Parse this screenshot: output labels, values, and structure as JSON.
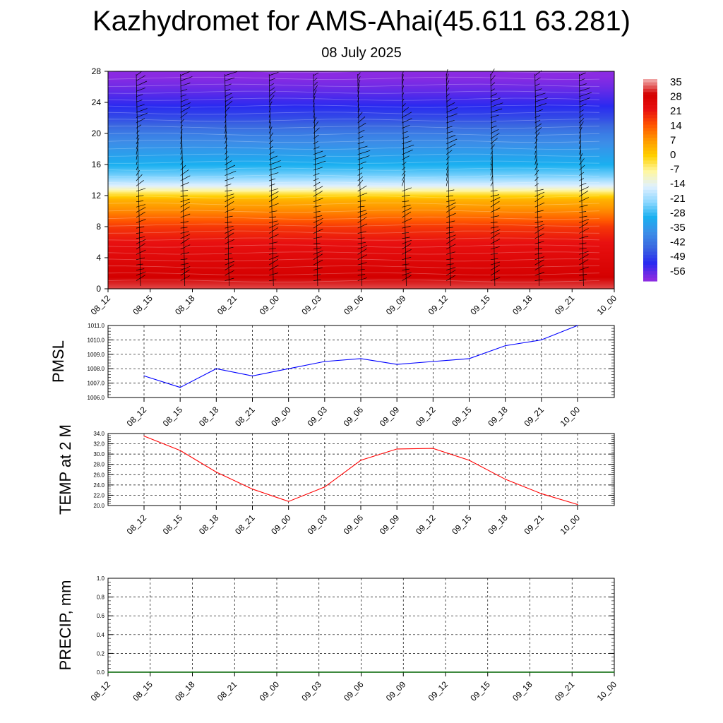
{
  "title": "Kazhydromet for AMS-Ahai(45.611 63.281)",
  "subtitle": "08 July 2025",
  "colors": {
    "pmsl_line": "#0000ff",
    "temp_line": "#ff0000",
    "precip_line": "#006400",
    "grid": "#000000"
  },
  "chart_data": [
    {
      "type": "heatmap",
      "name": "temperature-wind-profile",
      "x_ticks": [
        "08_12",
        "08_15",
        "08_18",
        "08_21",
        "09_00",
        "09_03",
        "09_06",
        "09_09",
        "09_12",
        "09_15",
        "09_18",
        "09_21",
        "10_00"
      ],
      "y_ticks": [
        "0",
        "4",
        "8",
        "12",
        "16",
        "20",
        "24",
        "28"
      ],
      "ylim": [
        0,
        28
      ],
      "colorbar_labels": [
        "35",
        "28",
        "21",
        "14",
        "7",
        "0",
        "-7",
        "-14",
        "-21",
        "-28",
        "-35",
        "-42",
        "-49",
        "-56"
      ],
      "color_stops": [
        {
          "value": 35,
          "color": "#f2b3b3"
        },
        {
          "value": 28,
          "color": "#d40000"
        },
        {
          "value": 21,
          "color": "#e81010"
        },
        {
          "value": 14,
          "color": "#ff5500"
        },
        {
          "value": 7,
          "color": "#ff9a00"
        },
        {
          "value": 0,
          "color": "#ffd000"
        },
        {
          "value": -7,
          "color": "#fff7a0"
        },
        {
          "value": -14,
          "color": "#e0f0ff"
        },
        {
          "value": -21,
          "color": "#8fd8ff"
        },
        {
          "value": -28,
          "color": "#1ab0f0"
        },
        {
          "value": -35,
          "color": "#3c8ee8"
        },
        {
          "value": -42,
          "color": "#3a66e0"
        },
        {
          "value": -49,
          "color": "#2a2af0"
        },
        {
          "value": -56,
          "color": "#8a2be2"
        }
      ],
      "profile": [
        {
          "y": 0,
          "t": 31
        },
        {
          "y": 2,
          "t": 27
        },
        {
          "y": 4,
          "t": 24
        },
        {
          "y": 6,
          "t": 21
        },
        {
          "y": 8,
          "t": 17
        },
        {
          "y": 10,
          "t": 9
        },
        {
          "y": 11.5,
          "t": 4
        },
        {
          "y": 12.5,
          "t": -5
        },
        {
          "y": 13.3,
          "t": -14
        },
        {
          "y": 14.5,
          "t": -22
        },
        {
          "y": 16,
          "t": -28
        },
        {
          "y": 18,
          "t": -33
        },
        {
          "y": 20,
          "t": -38
        },
        {
          "y": 22,
          "t": -45
        },
        {
          "y": 24,
          "t": -50
        },
        {
          "y": 26,
          "t": -54
        },
        {
          "y": 28,
          "t": -57
        }
      ]
    },
    {
      "type": "line",
      "name": "pmsl",
      "ylabel": "PMSL",
      "categories": [
        "08_12",
        "08_15",
        "08_18",
        "08_21",
        "09_00",
        "09_03",
        "09_06",
        "09_09",
        "09_12",
        "09_15",
        "09_18",
        "09_21",
        "10_00"
      ],
      "values": [
        1007.5,
        1006.7,
        1008.0,
        1007.5,
        1008.0,
        1008.5,
        1008.7,
        1008.3,
        1008.5,
        1008.7,
        1009.6,
        1010.0,
        1011.0
      ],
      "ylim": [
        1006.0,
        1011.0
      ],
      "y_ticks": [
        "1006.0",
        "1007.0",
        "1008.0",
        "1009.0",
        "1010.0",
        "1011.0"
      ],
      "grid": true
    },
    {
      "type": "line",
      "name": "temp-2m",
      "ylabel": "TEMP at 2 M",
      "categories": [
        "08_12",
        "08_15",
        "08_18",
        "08_21",
        "09_00",
        "09_03",
        "09_06",
        "09_09",
        "09_12",
        "09_15",
        "09_18",
        "09_21",
        "10_00"
      ],
      "values": [
        33.5,
        30.7,
        26.5,
        23.2,
        20.8,
        23.6,
        28.8,
        31.0,
        31.1,
        28.8,
        25.1,
        22.3,
        20.2
      ],
      "ylim": [
        20.0,
        34.0
      ],
      "y_ticks": [
        "20.0",
        "22.0",
        "24.0",
        "26.0",
        "28.0",
        "30.0",
        "32.0",
        "34.0"
      ],
      "grid": true
    },
    {
      "type": "line",
      "name": "precip",
      "ylabel": "PRECIP, mm",
      "categories": [
        "08_12",
        "08_15",
        "08_18",
        "08_21",
        "09_00",
        "09_03",
        "09_06",
        "09_09",
        "09_12",
        "09_15",
        "09_18",
        "09_21",
        "10_00"
      ],
      "values": [
        0,
        0,
        0,
        0,
        0,
        0,
        0,
        0,
        0,
        0,
        0,
        0,
        0
      ],
      "ylim": [
        0.0,
        1.0
      ],
      "y_ticks": [
        "0.0",
        "0.2",
        "0.4",
        "0.6",
        "0.8",
        "1.0"
      ],
      "grid": true
    }
  ]
}
